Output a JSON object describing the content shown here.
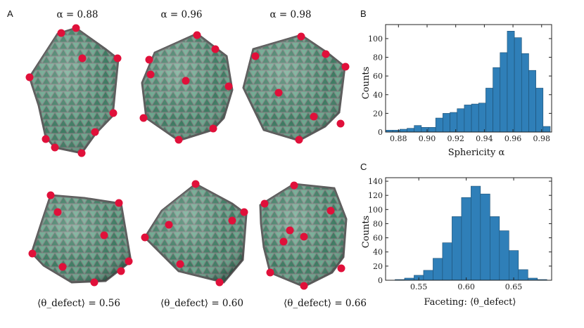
{
  "figure": {
    "panels": {
      "a": "A",
      "b": "B",
      "c": "C"
    },
    "top_captions": [
      "α = 0.88",
      "α = 0.96",
      "α = 0.98"
    ],
    "bottom_captions": [
      "⟨θ_defect⟩ = 0.56",
      "⟨θ_defect⟩ = 0.60",
      "⟨θ_defect⟩ = 0.66"
    ],
    "colors": {
      "mesh": "#7a7a7a",
      "fill": "#5a9a80",
      "defect": "#e0103a",
      "bar": "#2f7fb8"
    }
  },
  "chart_data": [
    {
      "type": "bar",
      "panel": "B",
      "title": "",
      "xlabel": "Sphericity α",
      "ylabel": "Counts",
      "bin_width": 0.005,
      "bin_left_edges": [
        0.871,
        0.876,
        0.881,
        0.886,
        0.891,
        0.896,
        0.901,
        0.906,
        0.911,
        0.916,
        0.921,
        0.926,
        0.931,
        0.936,
        0.941,
        0.946,
        0.951,
        0.956,
        0.961,
        0.966,
        0.971,
        0.976,
        0.981
      ],
      "values": [
        2,
        2,
        3,
        4,
        7,
        5,
        5,
        15,
        20,
        21,
        25,
        29,
        30,
        31,
        47,
        69,
        85,
        108,
        101,
        84,
        66,
        47,
        6
      ],
      "xlim": [
        0.871,
        0.987
      ],
      "ylim": [
        0,
        115
      ],
      "xticks": [
        0.88,
        0.9,
        0.92,
        0.94,
        0.96,
        0.98
      ],
      "xtick_labels": [
        "0.88",
        "0.90",
        "0.92",
        "0.94",
        "0.96",
        "0.98"
      ],
      "yticks": [
        0,
        20,
        40,
        60,
        80,
        100
      ],
      "ytick_labels": [
        "0",
        "20",
        "40",
        "60",
        "80",
        "100"
      ]
    },
    {
      "type": "bar",
      "panel": "C",
      "title": "",
      "xlabel": "Faceting: ⟨θ_defect⟩",
      "ylabel": "Counts",
      "bin_width": 0.01,
      "bin_left_edges": [
        0.525,
        0.535,
        0.545,
        0.555,
        0.565,
        0.575,
        0.585,
        0.595,
        0.605,
        0.615,
        0.625,
        0.635,
        0.645,
        0.655,
        0.665,
        0.675
      ],
      "values": [
        1,
        3,
        7,
        14,
        31,
        53,
        90,
        117,
        133,
        122,
        90,
        70,
        42,
        15,
        3,
        1
      ],
      "xlim": [
        0.515,
        0.69
      ],
      "ylim": [
        0,
        145
      ],
      "xticks": [
        0.55,
        0.6,
        0.65
      ],
      "xtick_labels": [
        "0.55",
        "0.60",
        "0.65"
      ],
      "yticks": [
        0,
        20,
        40,
        60,
        80,
        100,
        120,
        140
      ],
      "ytick_labels": [
        "0",
        "20",
        "40",
        "60",
        "80",
        "100",
        "120",
        "140"
      ]
    }
  ]
}
